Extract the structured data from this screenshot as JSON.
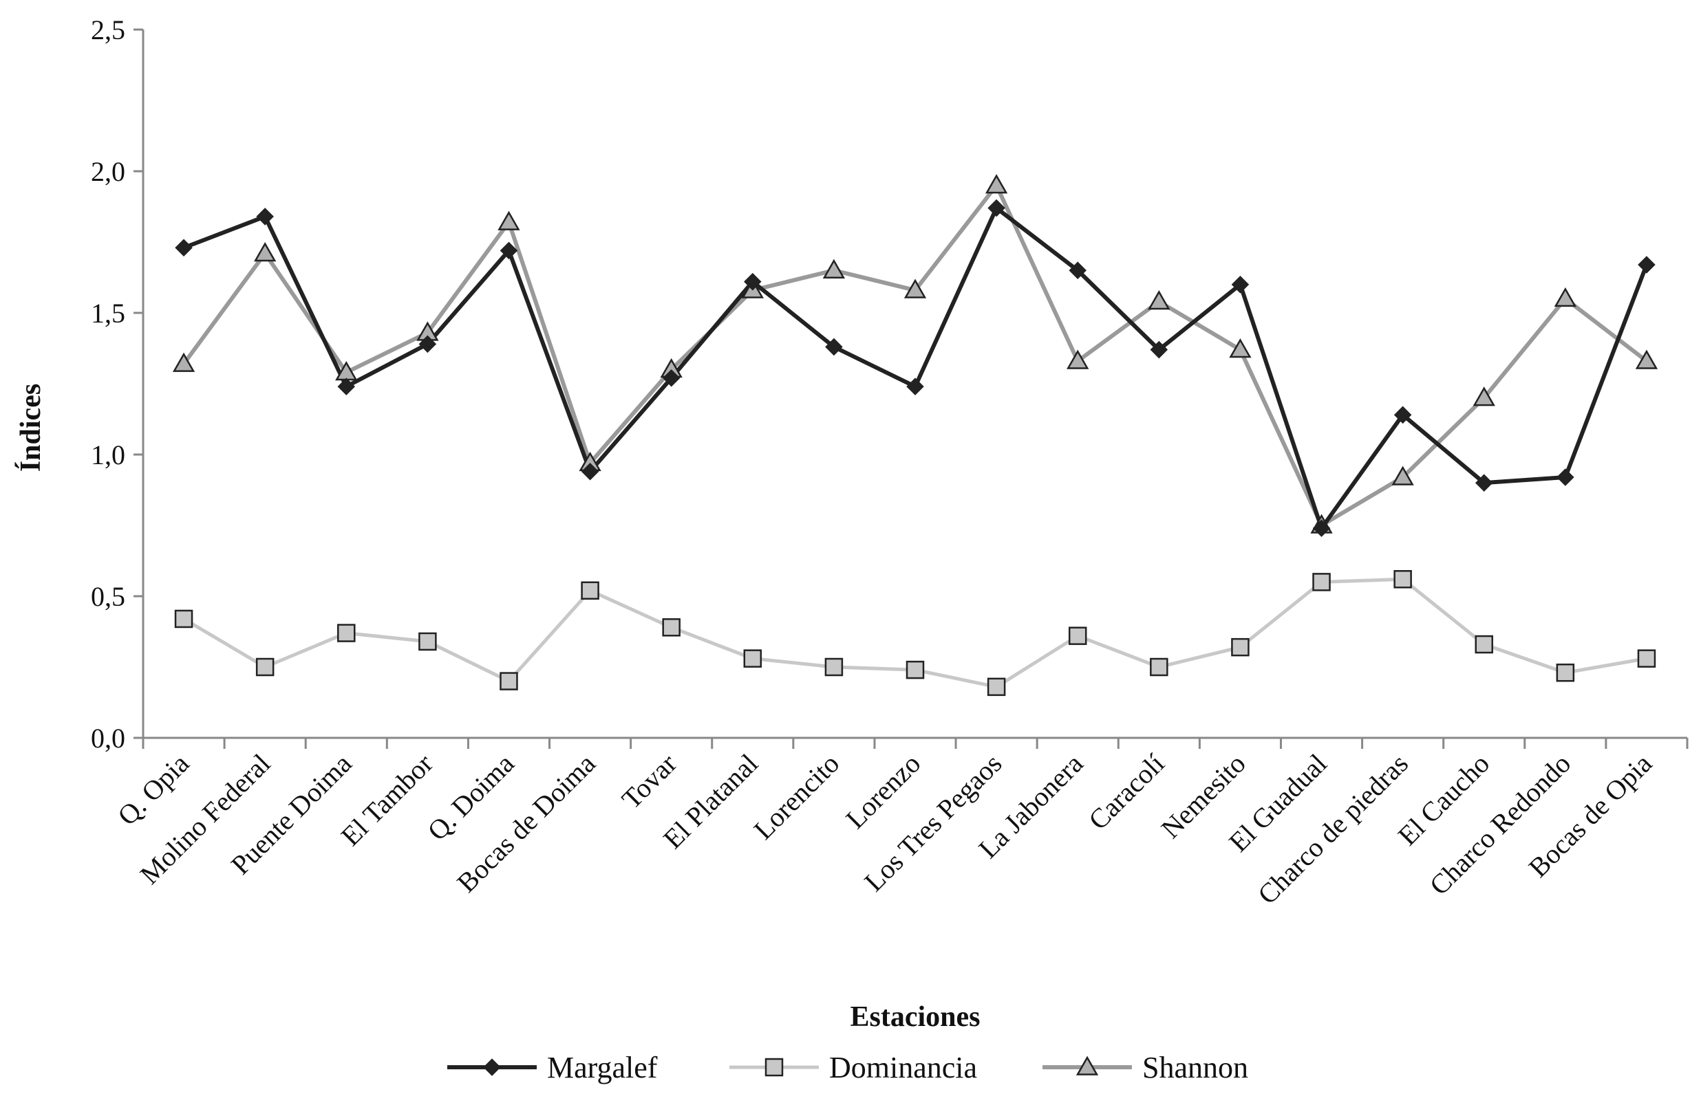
{
  "chart_data": {
    "type": "line",
    "xlabel": "Estaciones",
    "ylabel": "Índices",
    "ylim": [
      0,
      2.5
    ],
    "yticks": [
      "0,0",
      "0,5",
      "1,0",
      "1,5",
      "2,0",
      "2,5"
    ],
    "grid": false,
    "legend_position": "bottom",
    "categories": [
      "Q. Opia",
      "Molino Federal",
      "Puente Doima",
      "El Tambor",
      "Q. Doima",
      "Bocas de Doima",
      "Tovar",
      "El Platanal",
      "Lorencito",
      "Lorenzo",
      "Los Tres Pegaos",
      "La Jabonera",
      "Caracolí",
      "Nemesito",
      "El Guadual",
      "Charco de piedras",
      "El Caucho",
      "Charco Redondo",
      "Bocas de Opia"
    ],
    "series": [
      {
        "name": "Margalef",
        "marker": "diamond",
        "color": "#222222",
        "values": [
          1.73,
          1.84,
          1.24,
          1.39,
          1.72,
          0.94,
          1.27,
          1.61,
          1.38,
          1.24,
          1.87,
          1.65,
          1.37,
          1.6,
          0.74,
          1.14,
          0.9,
          0.92,
          1.67
        ]
      },
      {
        "name": "Dominancia",
        "marker": "square",
        "color": "#c8c8c8",
        "values": [
          0.42,
          0.25,
          0.37,
          0.34,
          0.2,
          0.52,
          0.39,
          0.28,
          0.25,
          0.24,
          0.18,
          0.36,
          0.25,
          0.32,
          0.55,
          0.56,
          0.33,
          0.23,
          0.28
        ]
      },
      {
        "name": "Shannon",
        "marker": "triangle",
        "color": "#9a9a9a",
        "values": [
          1.32,
          1.71,
          1.29,
          1.43,
          1.82,
          0.97,
          1.3,
          1.58,
          1.65,
          1.58,
          1.95,
          1.33,
          1.54,
          1.37,
          0.75,
          0.92,
          1.2,
          1.55,
          1.33
        ]
      }
    ]
  }
}
